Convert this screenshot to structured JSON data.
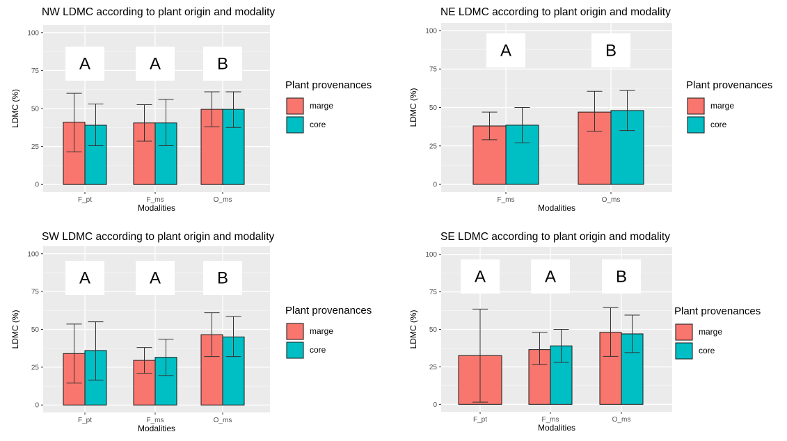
{
  "chart_data": [
    {
      "type": "bar",
      "title": "NW LDMC according to plant origin and modality",
      "xlabel": "Modalities",
      "ylabel": "LDMC (%)",
      "ylim": [
        0,
        100
      ],
      "yticks": [
        0,
        25,
        50,
        75,
        100
      ],
      "categories": [
        "F_pt",
        "F_ms",
        "O_ms"
      ],
      "group_letters": [
        "A",
        "A",
        "B"
      ],
      "grid": true,
      "legend": {
        "title": "Plant provenances",
        "position": "right"
      },
      "series": [
        {
          "name": "marge",
          "color": "#F8766D",
          "values": [
            41,
            40.5,
            49.5
          ],
          "err_low": [
            21.5,
            28.5,
            38
          ],
          "err_high": [
            60,
            52.5,
            61
          ]
        },
        {
          "name": "core",
          "color": "#00BFC4",
          "values": [
            39,
            40.5,
            49.5
          ],
          "err_low": [
            25.5,
            25.5,
            37.5
          ],
          "err_high": [
            53,
            56,
            61
          ]
        }
      ]
    },
    {
      "type": "bar",
      "title": "NE LDMC according to plant origin and modality",
      "xlabel": "Modalities",
      "ylabel": "LDMC (%)",
      "ylim": [
        0,
        100
      ],
      "yticks": [
        0,
        25,
        50,
        75,
        100
      ],
      "categories": [
        "F_ms",
        "O_ms"
      ],
      "group_letters": [
        "A",
        "B"
      ],
      "grid": true,
      "legend": {
        "title": "Plant provenances",
        "position": "right"
      },
      "series": [
        {
          "name": "marge",
          "color": "#F8766D",
          "values": [
            38,
            47
          ],
          "err_low": [
            29,
            34.5
          ],
          "err_high": [
            47,
            60.5
          ]
        },
        {
          "name": "core",
          "color": "#00BFC4",
          "values": [
            38.5,
            48
          ],
          "err_low": [
            27,
            35
          ],
          "err_high": [
            50,
            61
          ]
        }
      ]
    },
    {
      "type": "bar",
      "title": "SW LDMC according to plant origin and modality",
      "xlabel": "Modalities",
      "ylabel": "LDMC (%)",
      "ylim": [
        0,
        100
      ],
      "yticks": [
        0,
        25,
        50,
        75,
        100
      ],
      "categories": [
        "F_pt",
        "F_ms",
        "O_ms"
      ],
      "group_letters": [
        "A",
        "A",
        "B"
      ],
      "grid": true,
      "legend": {
        "title": "Plant provenances",
        "position": "right"
      },
      "series": [
        {
          "name": "marge",
          "color": "#F8766D",
          "values": [
            34,
            29.5,
            46.5
          ],
          "err_low": [
            14.5,
            21,
            32
          ],
          "err_high": [
            53.5,
            38,
            61
          ]
        },
        {
          "name": "core",
          "color": "#00BFC4",
          "values": [
            36,
            31.5,
            45
          ],
          "err_low": [
            16.5,
            19.5,
            32
          ],
          "err_high": [
            55,
            43.5,
            58.5
          ]
        }
      ]
    },
    {
      "type": "bar",
      "title": "SE LDMC according to plant origin and modality",
      "xlabel": "Modalities",
      "ylabel": "LDMC (%)",
      "ylim": [
        0,
        100
      ],
      "yticks": [
        0,
        25,
        50,
        75,
        100
      ],
      "categories": [
        "F_pt",
        "F_ms",
        "O_ms"
      ],
      "group_letters": [
        "A",
        "A",
        "B"
      ],
      "grid": true,
      "legend": {
        "title": "Plant provenances",
        "position": "right"
      },
      "series": [
        {
          "name": "marge",
          "color": "#F8766D",
          "values": [
            32.5,
            36.5,
            48
          ],
          "err_low": [
            1.5,
            26.5,
            32
          ],
          "err_high": [
            63.5,
            48,
            64.5
          ]
        },
        {
          "name": "core",
          "color": "#00BFC4",
          "values": [
            null,
            39,
            47
          ],
          "err_low": [
            null,
            28,
            34.5
          ],
          "err_high": [
            null,
            50,
            59.5
          ]
        }
      ]
    }
  ]
}
